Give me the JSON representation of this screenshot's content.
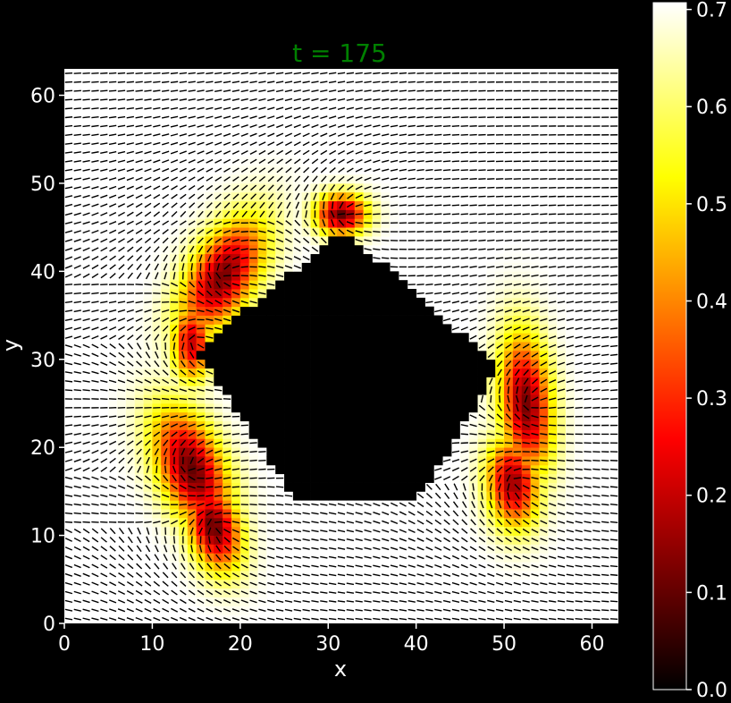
{
  "chart_data": {
    "type": "heatmap",
    "title": "t = 175",
    "title_color": "#008000",
    "xlabel": "x",
    "ylabel": "y",
    "xlim": [
      0,
      63
    ],
    "ylim": [
      0,
      63
    ],
    "xticks": [
      0,
      10,
      20,
      30,
      40,
      50,
      60
    ],
    "yticks": [
      0,
      10,
      20,
      30,
      40,
      50,
      60
    ],
    "colormap": "hot",
    "colorbar": {
      "vmin": 0.0,
      "vmax": 0.707,
      "ticks": [
        {
          "value": 0.0,
          "label": "0.0"
        },
        {
          "value": 0.1,
          "label": "0.1"
        },
        {
          "value": 0.2,
          "label": "0.2"
        },
        {
          "value": 0.3,
          "label": "0.3"
        },
        {
          "value": 0.4,
          "label": "0.4"
        },
        {
          "value": 0.5,
          "label": "0.5"
        },
        {
          "value": 0.6,
          "label": "0.6"
        },
        {
          "value": 0.7,
          "label": "0.7"
        }
      ]
    },
    "background_value": 0.707,
    "obstacle": {
      "shape": "diamond",
      "vertices": [
        [
          32,
          44.5
        ],
        [
          49.5,
          29
        ],
        [
          47.5,
          26
        ],
        [
          40.5,
          14.5
        ],
        [
          26,
          14.5
        ],
        [
          15,
          31
        ],
        [
          31.5,
          44.5
        ]
      ],
      "value": 0.0
    },
    "defects": [
      {
        "x": 31.5,
        "y": 46.5,
        "min_value": 0.1,
        "sx": 2.0,
        "sy": 1.6,
        "angle": 0
      },
      {
        "x": 18,
        "y": 39.5,
        "min_value": 0.12,
        "sx": 2.5,
        "sy": 5.0,
        "angle": -30
      },
      {
        "x": 14.5,
        "y": 32,
        "min_value": 0.2,
        "sx": 1.5,
        "sy": 3.0,
        "angle": 0
      },
      {
        "x": 14.5,
        "y": 17.5,
        "min_value": 0.1,
        "sx": 2.5,
        "sy": 5.0,
        "angle": 22
      },
      {
        "x": 17,
        "y": 11,
        "min_value": 0.1,
        "sx": 2.0,
        "sy": 3.5,
        "angle": 15
      },
      {
        "x": 52.5,
        "y": 25,
        "min_value": 0.12,
        "sx": 2.0,
        "sy": 5.5,
        "angle": 5
      },
      {
        "x": 51,
        "y": 16,
        "min_value": 0.15,
        "sx": 2.0,
        "sy": 3.5,
        "angle": 5
      }
    ],
    "director_field": "short black line segments on the grid, mostly horizontal far from the obstacle, rotating around the defects"
  }
}
